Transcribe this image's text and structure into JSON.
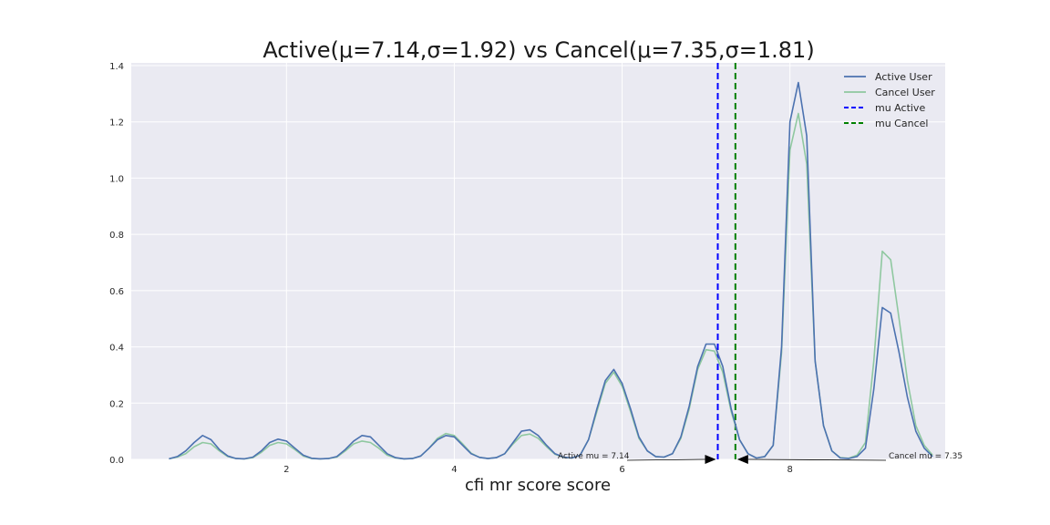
{
  "chart_data": {
    "type": "line",
    "title": "Active(μ=7.14,σ=1.92) vs Cancel(μ=7.35,σ=1.81)",
    "xlabel": "cfi mr score score",
    "ylabel": "",
    "xlim": [
      0.15,
      9.85
    ],
    "ylim": [
      0.0,
      1.4
    ],
    "x_ticks": [
      2,
      4,
      6,
      8
    ],
    "y_ticks": [
      0.0,
      0.2,
      0.4,
      0.6,
      0.8,
      1.0,
      1.2,
      1.4
    ],
    "x_tick_labels": [
      "2",
      "4",
      "6",
      "8"
    ],
    "y_tick_labels": [
      "0.0",
      "0.2",
      "0.4",
      "0.6",
      "0.8",
      "1.0",
      "1.2",
      "1.4"
    ],
    "grid": true,
    "legend_position": "top-right",
    "series": [
      {
        "name": "Active User",
        "color": "#4c72b0",
        "x": [
          0.6,
          0.7,
          0.8,
          0.9,
          1.0,
          1.1,
          1.2,
          1.3,
          1.4,
          1.5,
          1.6,
          1.7,
          1.8,
          1.9,
          2.0,
          2.1,
          2.2,
          2.3,
          2.4,
          2.5,
          2.6,
          2.7,
          2.8,
          2.9,
          3.0,
          3.1,
          3.2,
          3.3,
          3.4,
          3.5,
          3.6,
          3.7,
          3.8,
          3.9,
          4.0,
          4.1,
          4.2,
          4.3,
          4.4,
          4.5,
          4.6,
          4.7,
          4.8,
          4.9,
          5.0,
          5.1,
          5.2,
          5.3,
          5.4,
          5.5,
          5.6,
          5.7,
          5.8,
          5.9,
          6.0,
          6.1,
          6.2,
          6.3,
          6.4,
          6.5,
          6.6,
          6.7,
          6.8,
          6.9,
          7.0,
          7.1,
          7.2,
          7.3,
          7.4,
          7.5,
          7.6,
          7.7,
          7.8,
          7.9,
          8.0,
          8.1,
          8.2,
          8.3,
          8.4,
          8.5,
          8.6,
          8.7,
          8.8,
          8.9,
          9.0,
          9.1,
          9.2,
          9.3,
          9.4,
          9.5
        ],
        "values": [
          0.002,
          0.01,
          0.03,
          0.06,
          0.085,
          0.07,
          0.035,
          0.012,
          0.003,
          0.002,
          0.008,
          0.03,
          0.06,
          0.072,
          0.065,
          0.04,
          0.015,
          0.004,
          0.002,
          0.003,
          0.01,
          0.035,
          0.065,
          0.085,
          0.08,
          0.05,
          0.02,
          0.006,
          0.002,
          0.003,
          0.012,
          0.04,
          0.07,
          0.085,
          0.08,
          0.05,
          0.02,
          0.007,
          0.003,
          0.006,
          0.02,
          0.06,
          0.1,
          0.105,
          0.085,
          0.05,
          0.02,
          0.008,
          0.005,
          0.015,
          0.07,
          0.18,
          0.28,
          0.32,
          0.27,
          0.18,
          0.08,
          0.03,
          0.01,
          0.008,
          0.02,
          0.08,
          0.19,
          0.33,
          0.41,
          0.41,
          0.33,
          0.18,
          0.07,
          0.02,
          0.005,
          0.01,
          0.05,
          0.4,
          1.2,
          1.34,
          1.15,
          0.35,
          0.12,
          0.03,
          0.005,
          0.003,
          0.01,
          0.04,
          0.25,
          0.54,
          0.52,
          0.38,
          0.22,
          0.1
        ],
        "extra_points": [
          [
            9.6,
            0.04
          ],
          [
            9.7,
            0.01
          ]
        ]
      },
      {
        "name": "Cancel User",
        "color": "#8fc8a0",
        "x": [
          0.6,
          0.7,
          0.8,
          0.9,
          1.0,
          1.1,
          1.2,
          1.3,
          1.4,
          1.5,
          1.6,
          1.7,
          1.8,
          1.9,
          2.0,
          2.1,
          2.2,
          2.3,
          2.4,
          2.5,
          2.6,
          2.7,
          2.8,
          2.9,
          3.0,
          3.1,
          3.2,
          3.3,
          3.4,
          3.5,
          3.6,
          3.7,
          3.8,
          3.9,
          4.0,
          4.1,
          4.2,
          4.3,
          4.4,
          4.5,
          4.6,
          4.7,
          4.8,
          4.9,
          5.0,
          5.1,
          5.2,
          5.3,
          5.4,
          5.5,
          5.6,
          5.7,
          5.8,
          5.9,
          6.0,
          6.1,
          6.2,
          6.3,
          6.4,
          6.5,
          6.6,
          6.7,
          6.8,
          6.9,
          7.0,
          7.1,
          7.2,
          7.3,
          7.4,
          7.5,
          7.6,
          7.7,
          7.8,
          7.9,
          8.0,
          8.1,
          8.2,
          8.3,
          8.4,
          8.5,
          8.6,
          8.7,
          8.8,
          8.9,
          9.0,
          9.1,
          9.2,
          9.3,
          9.4,
          9.5
        ],
        "values": [
          0.002,
          0.008,
          0.02,
          0.045,
          0.06,
          0.055,
          0.03,
          0.01,
          0.003,
          0.002,
          0.006,
          0.025,
          0.05,
          0.06,
          0.055,
          0.035,
          0.012,
          0.003,
          0.002,
          0.003,
          0.008,
          0.03,
          0.055,
          0.065,
          0.06,
          0.04,
          0.015,
          0.005,
          0.002,
          0.003,
          0.012,
          0.04,
          0.075,
          0.092,
          0.085,
          0.055,
          0.022,
          0.007,
          0.003,
          0.006,
          0.02,
          0.055,
          0.085,
          0.09,
          0.075,
          0.045,
          0.018,
          0.007,
          0.005,
          0.015,
          0.07,
          0.17,
          0.27,
          0.31,
          0.26,
          0.17,
          0.075,
          0.03,
          0.01,
          0.008,
          0.02,
          0.075,
          0.18,
          0.32,
          0.39,
          0.385,
          0.31,
          0.17,
          0.07,
          0.02,
          0.005,
          0.01,
          0.05,
          0.38,
          1.1,
          1.23,
          1.05,
          0.35,
          0.12,
          0.03,
          0.006,
          0.004,
          0.015,
          0.06,
          0.35,
          0.74,
          0.71,
          0.5,
          0.28,
          0.12
        ],
        "extra_points": [
          [
            9.6,
            0.05
          ],
          [
            9.7,
            0.015
          ]
        ]
      }
    ],
    "vlines": [
      {
        "name": "mu Active",
        "x": 7.14,
        "color": "#0000ff"
      },
      {
        "name": "mu Cancel",
        "x": 7.35,
        "color": "#008000"
      }
    ],
    "annotations": [
      {
        "text": "Active mu = 7.14",
        "x": 7.14,
        "y": 0.0,
        "text_x": 6.0,
        "text_y": 0.0
      },
      {
        "text": "Cancel mu = 7.35",
        "x": 7.35,
        "y": 0.0,
        "text_x": 9.5,
        "text_y": 0.0
      }
    ]
  }
}
